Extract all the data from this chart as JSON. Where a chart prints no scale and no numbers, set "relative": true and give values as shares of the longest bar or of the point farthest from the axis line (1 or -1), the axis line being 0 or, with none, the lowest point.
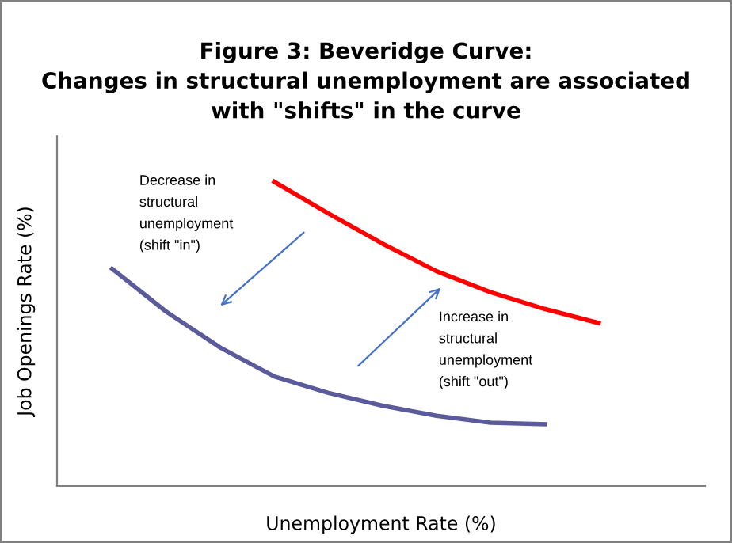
{
  "chart_data": {
    "type": "line",
    "title": "Figure 3: Beveridge Curve:\nChanges in structural unemployment are associated\nwith \"shifts\" in the curve",
    "xlabel": "Unemployment Rate (%)",
    "ylabel": "Job Openings Rate (%)",
    "relative": true,
    "legend": false,
    "marker": "none",
    "line_style": "solid",
    "categories": [
      null,
      null,
      null,
      null,
      null,
      null,
      null,
      null,
      null,
      null
    ],
    "series": [
      {
        "color": "#ff0000",
        "values": [
          null,
          null,
          null,
          1,
          0.896,
          0.797,
          0.706,
          0.637,
          0.582,
          0.536
        ]
      },
      {
        "color": "#5b5b9b",
        "values": [
          0.714,
          0.573,
          0.455,
          0.36,
          0.306,
          0.264,
          0.231,
          0.208,
          0.203,
          null
        ]
      }
    ],
    "annotations": [
      "Decrease in\nstructural\nunemployment\n(shift \"in\")",
      "Increase in\nstructural\nunemployment\n(shift \"out\")"
    ]
  }
}
